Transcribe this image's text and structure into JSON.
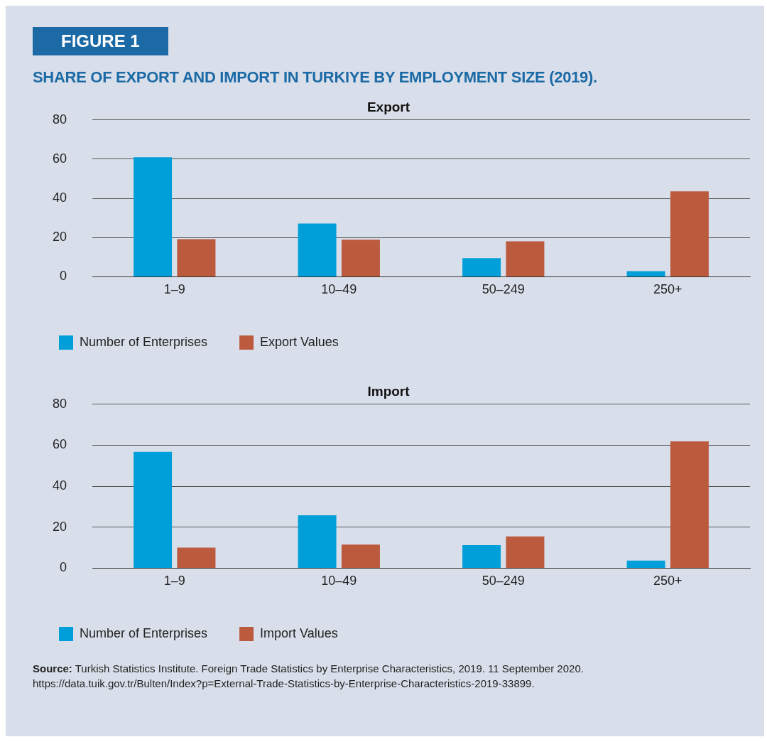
{
  "chart_data": [
    {
      "type": "bar",
      "title": "SHARE OF EXPORT AND IMPORT IN TURKIYE BY EMPLOYMENT SIZE (2019).",
      "subtitle": "Export",
      "annotations": [
        "FIGURE 1"
      ],
      "categories": [
        "1–9",
        "10–49",
        "50–249",
        "250+"
      ],
      "series": [
        {
          "name": "Number of Enterprises",
          "color": "#009fd9",
          "values": [
            61,
            27.2,
            9.5,
            2.9
          ]
        },
        {
          "name": "Export Values",
          "color": "#bc5a3e",
          "values": [
            19.2,
            18.9,
            18.1,
            43.6
          ]
        }
      ],
      "ylim": [
        0,
        80
      ],
      "yticks": [
        0,
        20,
        40,
        60,
        80
      ],
      "grid": "y",
      "legend": "bottom left"
    },
    {
      "type": "bar",
      "subtitle": "Import",
      "annotations": [
        "Source: Turkish Statistics Institute. Foreign Trade Statistics by Enterprise Characteristics, 2019. 11 September 2020. https://data.tuik.gov.tr/Bulten/Index?p=External-Trade-Statistics-by-Enterprise-Characteristics-2019-33899."
      ],
      "categories": [
        "1–9",
        "10–49",
        "50–249",
        "250+"
      ],
      "series": [
        {
          "name": "Number of Enterprises",
          "color": "#009fd9",
          "values": [
            56.8,
            25.8,
            11.2,
            3.7
          ]
        },
        {
          "name": "Import Values",
          "color": "#bc5a3e",
          "values": [
            10,
            11.5,
            15.5,
            61.9
          ]
        }
      ],
      "ylim": [
        0,
        80
      ],
      "yticks": [
        0,
        20,
        40,
        60,
        80
      ],
      "grid": "y",
      "legend": "bottom left"
    }
  ]
}
